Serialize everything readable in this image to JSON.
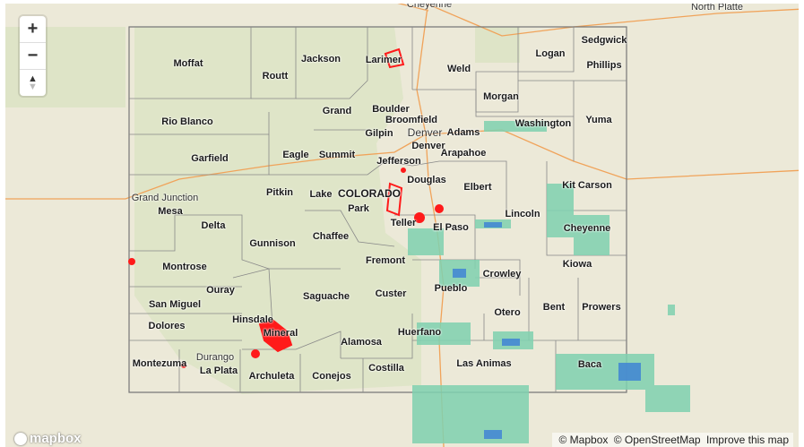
{
  "map": {
    "state_label": "COLORADO",
    "cities": [
      "Cheyenne",
      "North Platte",
      "Grand Junction",
      "Denver",
      "Durango"
    ],
    "counties": [
      "Moffat",
      "Routt",
      "Jackson",
      "Larimer",
      "Weld",
      "Logan",
      "Sedgwick",
      "Phillips",
      "Morgan",
      "Grand",
      "Boulder",
      "Broomfield",
      "Adams",
      "Washington",
      "Yuma",
      "Rio Blanco",
      "Gilpin",
      "Denver",
      "Garfield",
      "Eagle",
      "Summit",
      "Jefferson",
      "Arapahoe",
      "Kit Carson",
      "Elbert",
      "Douglas",
      "Pitkin",
      "Lake",
      "Park",
      "Mesa",
      "Teller",
      "El Paso",
      "Lincoln",
      "Delta",
      "Chaffee",
      "Cheyenne",
      "Gunnison",
      "Fremont",
      "Kiowa",
      "Montrose",
      "Crowley",
      "Pueblo",
      "Ouray",
      "Saguache",
      "Custer",
      "San Miguel",
      "Bent",
      "Prowers",
      "Otero",
      "Hinsdale",
      "Dolores",
      "Mineral",
      "Huerfano",
      "Alamosa",
      "Las Animas",
      "Baca",
      "Montezuma",
      "La Plata",
      "Archuleta",
      "Conejos",
      "Costilla"
    ],
    "colors": {
      "land": "#ece9d8",
      "forest": "#cfe0b4",
      "boundary": "#777777",
      "highway": "#f0a35a",
      "fire": "#ff1a1a",
      "radar_light": "#7fd1b0",
      "radar_heavy": "#3b7fd6"
    }
  },
  "controls": {
    "zoom_in": "+",
    "zoom_out": "−",
    "compass": "▲"
  },
  "logo": "mapbox",
  "attribution": {
    "mapbox": "© Mapbox",
    "osm": "© OpenStreetMap",
    "improve": "Improve this map"
  }
}
